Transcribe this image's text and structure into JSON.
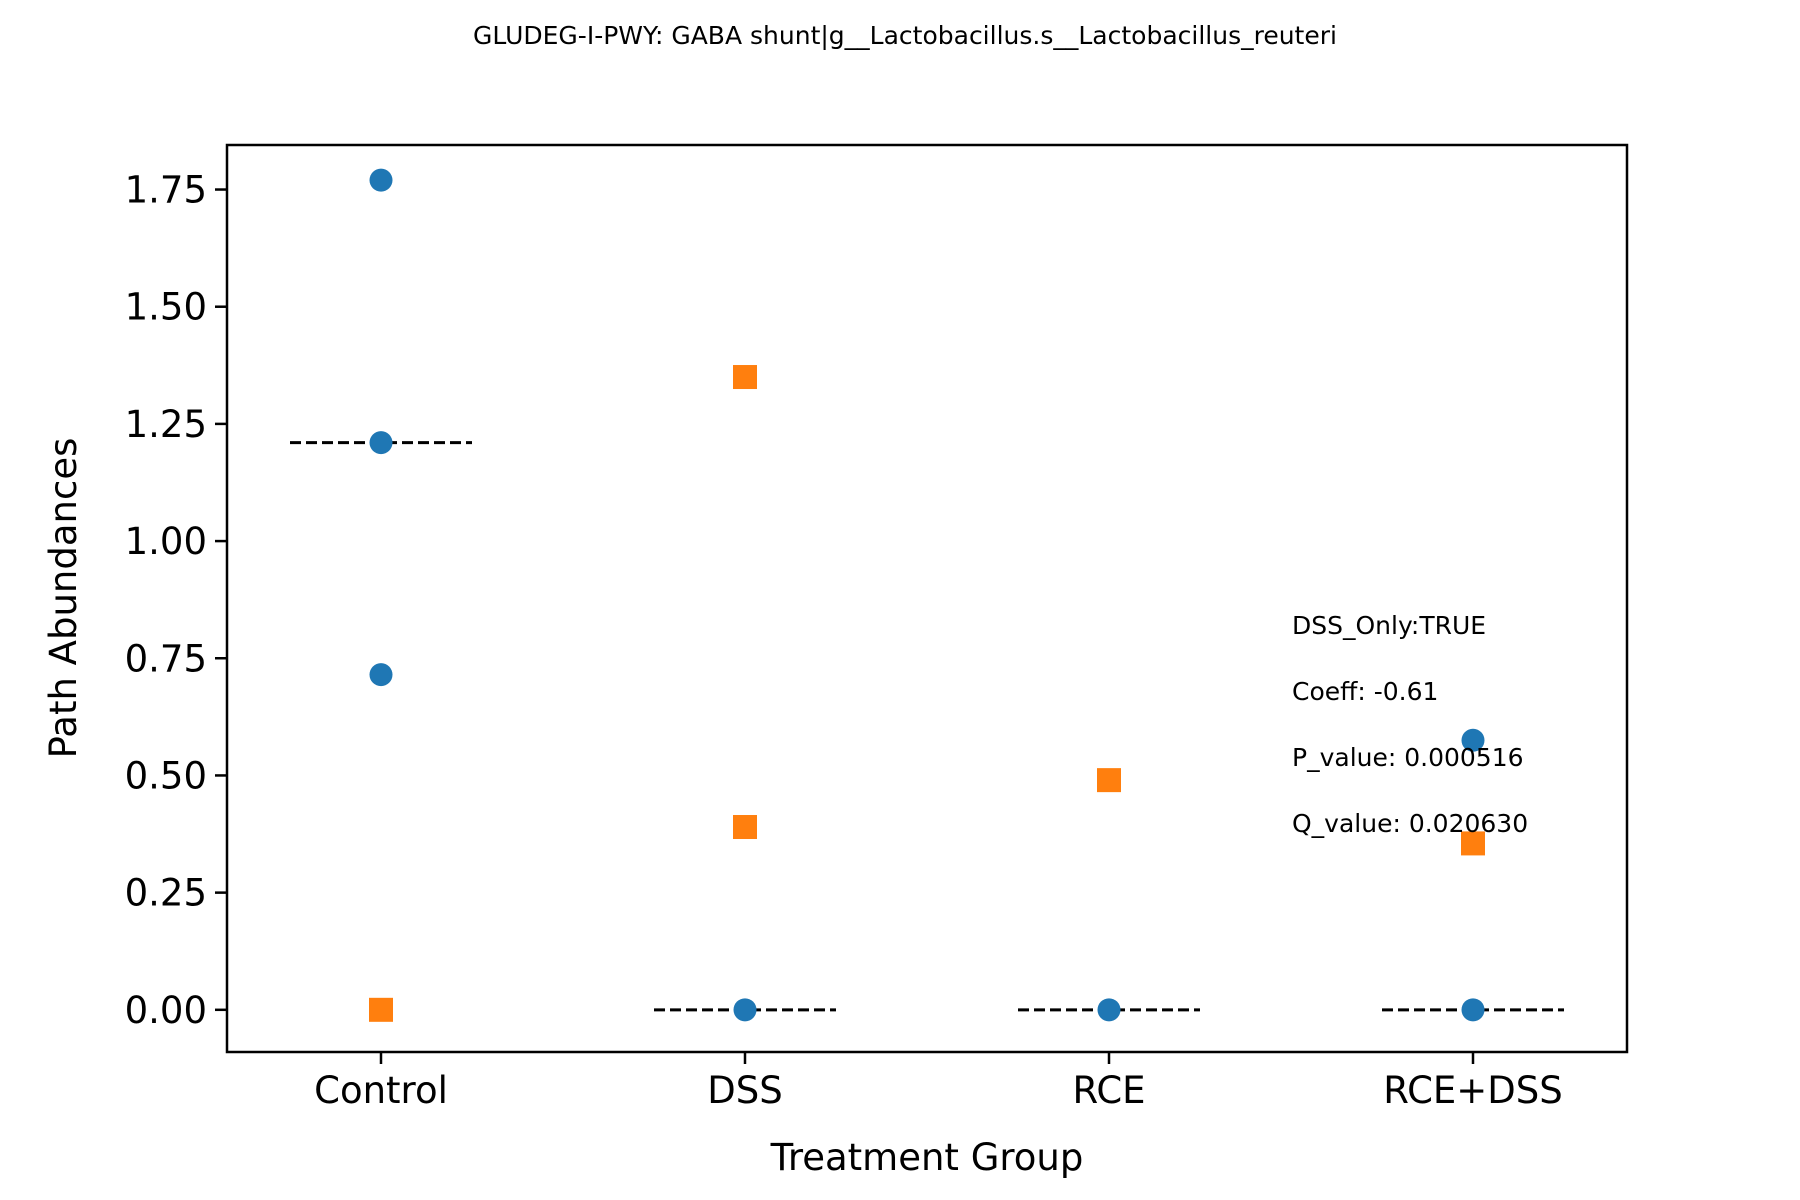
{
  "chart_data": {
    "type": "scatter",
    "title": "GLUDEG-I-PWY: GABA shunt|g__Lactobacillus.s__Lactobacillus_reuteri",
    "xlabel": "Treatment Group",
    "ylabel": "Path Abundances",
    "categories": [
      "Control",
      "DSS",
      "RCE",
      "RCE+DSS"
    ],
    "ylim": [
      -0.09,
      1.845
    ],
    "yticks": [
      "0.00",
      "0.25",
      "0.50",
      "0.75",
      "1.00",
      "1.25",
      "1.50",
      "1.75"
    ],
    "grid": false,
    "series": [
      {
        "marker": "circle",
        "color": "#1f77b4",
        "points": [
          {
            "category": "Control",
            "value": 1.77
          },
          {
            "category": "Control",
            "value": 1.21
          },
          {
            "category": "Control",
            "value": 0.715
          },
          {
            "category": "DSS",
            "value": 0.0
          },
          {
            "category": "RCE",
            "value": 0.0
          },
          {
            "category": "RCE+DSS",
            "value": 0.575
          },
          {
            "category": "RCE+DSS",
            "value": 0.0
          }
        ]
      },
      {
        "marker": "square",
        "color": "#ff7f0e",
        "points": [
          {
            "category": "Control",
            "value": 0.0
          },
          {
            "category": "DSS",
            "value": 1.35
          },
          {
            "category": "DSS",
            "value": 0.39
          },
          {
            "category": "RCE",
            "value": 0.49
          },
          {
            "category": "RCE+DSS",
            "value": 0.355
          }
        ]
      }
    ],
    "median_lines": [
      {
        "category": "Control",
        "value": 1.21
      },
      {
        "category": "DSS",
        "value": 0.0
      },
      {
        "category": "RCE",
        "value": 0.0
      },
      {
        "category": "RCE+DSS",
        "value": 0.0
      }
    ],
    "annotations": [
      "DSS_Only:TRUE",
      "Coeff: -0.61",
      "P_value: 0.000516",
      "Q_value: 0.020630"
    ]
  }
}
